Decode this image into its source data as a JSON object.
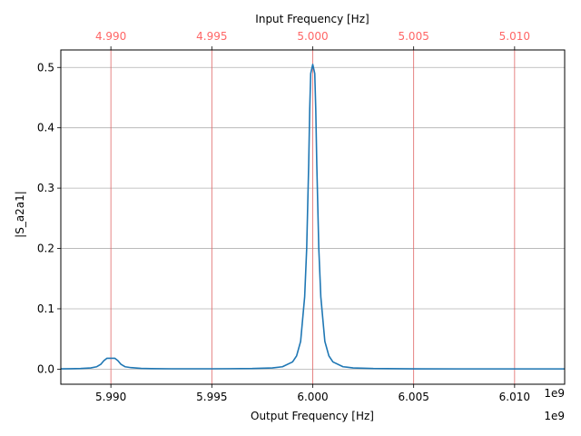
{
  "chart_data": {
    "type": "line",
    "title": "",
    "xlabel": "Output Frequency [Hz]",
    "ylabel": "|S_a2a1|",
    "x_offset_label": "1e9",
    "x_scale": 1000000000,
    "xlim": [
      5.98752,
      6.01248
    ],
    "ylim": [
      -0.025,
      0.529
    ],
    "xticks": [
      {
        "value": 5.99,
        "label": "5.990"
      },
      {
        "value": 5.995,
        "label": "5.995"
      },
      {
        "value": 6.0,
        "label": "6.000"
      },
      {
        "value": 6.005,
        "label": "6.005"
      },
      {
        "value": 6.01,
        "label": "6.010"
      }
    ],
    "yticks": [
      {
        "value": 0.0,
        "label": "0.0"
      },
      {
        "value": 0.1,
        "label": "0.1"
      },
      {
        "value": 0.2,
        "label": "0.2"
      },
      {
        "value": 0.3,
        "label": "0.3"
      },
      {
        "value": 0.4,
        "label": "0.4"
      },
      {
        "value": 0.5,
        "label": "0.5"
      }
    ],
    "secondary_x": {
      "label": "Input Frequency [Hz]",
      "offset_label": "1e9",
      "color": "#ff6666",
      "ticks": [
        {
          "output_value": 5.99,
          "label": "4.990"
        },
        {
          "output_value": 5.995,
          "label": "4.995"
        },
        {
          "output_value": 6.0,
          "label": "5.000"
        },
        {
          "output_value": 6.005,
          "label": "5.005"
        },
        {
          "output_value": 6.01,
          "label": "5.010"
        }
      ]
    },
    "grid": {
      "horizontal": true,
      "horizontal_color": "#b0b0b0",
      "vertical_color": "#e06666"
    },
    "series": [
      {
        "color": "#1f77b4",
        "x": [
          5.98752,
          5.988,
          5.9885,
          5.989,
          5.9893,
          5.9895,
          5.98965,
          5.9898,
          5.99,
          5.9902,
          5.99035,
          5.9905,
          5.9907,
          5.991,
          5.9915,
          5.992,
          5.993,
          5.995,
          5.997,
          5.998,
          5.9985,
          5.999,
          5.9992,
          5.9994,
          5.9996,
          5.9997,
          5.9998,
          5.99985,
          5.9999,
          6.0,
          6.0001,
          6.00015,
          6.0002,
          6.0003,
          6.0004,
          6.0006,
          6.0008,
          6.001,
          6.0015,
          6.002,
          6.003,
          6.005,
          6.008,
          6.011,
          6.01248
        ],
        "values": [
          0.0005,
          0.0007,
          0.001,
          0.002,
          0.004,
          0.008,
          0.014,
          0.018,
          0.018,
          0.018,
          0.014,
          0.008,
          0.004,
          0.0025,
          0.0012,
          0.0008,
          0.0006,
          0.0006,
          0.001,
          0.002,
          0.004,
          0.012,
          0.022,
          0.046,
          0.12,
          0.2,
          0.34,
          0.43,
          0.49,
          0.505,
          0.49,
          0.43,
          0.34,
          0.2,
          0.12,
          0.046,
          0.022,
          0.012,
          0.004,
          0.002,
          0.001,
          0.0005,
          0.0004,
          0.0004,
          0.0004
        ]
      }
    ]
  }
}
